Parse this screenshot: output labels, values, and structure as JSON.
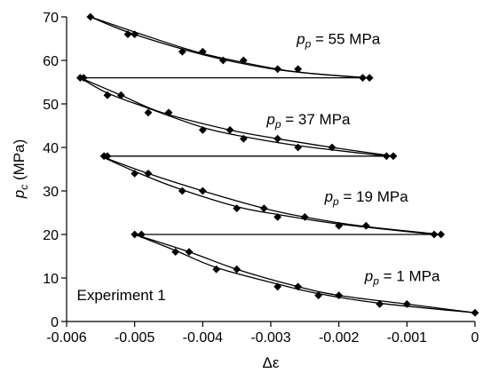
{
  "chart_data": {
    "type": "line",
    "title": "",
    "xlabel": "Δε",
    "ylabel_main": "p",
    "ylabel_sub": "c",
    "ylabel_unit": " (MPa)",
    "xlim": [
      -0.006,
      0
    ],
    "ylim": [
      0,
      70
    ],
    "xticks": [
      -0.006,
      -0.005,
      -0.004,
      -0.003,
      -0.002,
      -0.001,
      0
    ],
    "xtick_labels": [
      "-0.006",
      "-0.005",
      "-0.004",
      "-0.003",
      "-0.002",
      "-0.001",
      "0"
    ],
    "yticks": [
      0,
      10,
      20,
      30,
      40,
      50,
      60,
      70
    ],
    "ytick_labels": [
      "0",
      "10",
      "20",
      "30",
      "40",
      "50",
      "60",
      "70"
    ],
    "grid": false,
    "legend": "none",
    "annotations": [
      {
        "main": "p",
        "sub": "p",
        "rest": " = 55 MPa",
        "x": -0.00262,
        "y": 63.8
      },
      {
        "main": "p",
        "sub": "p",
        "rest": " = 37 MPa",
        "x": -0.00306,
        "y": 45.3
      },
      {
        "main": "p",
        "sub": "p",
        "rest": " = 19 MPa",
        "x": -0.00221,
        "y": 27.6
      },
      {
        "main": "p",
        "sub": "p",
        "rest": " = 1 MPa",
        "x": -0.00162,
        "y": 9.3
      },
      {
        "main": "Experiment 1",
        "sub": "",
        "rest": "",
        "x": -0.00585,
        "y": 4.9
      }
    ],
    "series": [
      {
        "curves": [
          [
            [
              -0.00565,
              70
            ],
            [
              -0.0051,
              66.5
            ],
            [
              -0.0043,
              62.6
            ],
            [
              -0.0037,
              60.2
            ],
            [
              -0.003,
              58.1
            ],
            [
              -0.0024,
              57
            ],
            [
              -0.00165,
              56
            ]
          ],
          [
            [
              -0.00565,
              70
            ],
            [
              -0.0049,
              66
            ],
            [
              -0.0041,
              62
            ],
            [
              -0.0034,
              59.5
            ],
            [
              -0.0027,
              57.5
            ],
            [
              -0.0021,
              56.6
            ],
            [
              -0.00155,
              56
            ]
          ]
        ],
        "markers": [
          [
            -0.00565,
            70
          ],
          [
            -0.0051,
            66
          ],
          [
            -0.005,
            66
          ],
          [
            -0.0043,
            62
          ],
          [
            -0.004,
            62
          ],
          [
            -0.0037,
            60
          ],
          [
            -0.0034,
            60
          ],
          [
            -0.0029,
            58
          ],
          [
            -0.0026,
            58
          ],
          [
            -0.00165,
            56
          ],
          [
            -0.00155,
            56
          ]
        ]
      },
      {
        "hline": [
          [
            -0.0058,
            56
          ],
          [
            -0.0016,
            56
          ]
        ]
      },
      {
        "curves": [
          [
            [
              -0.0058,
              56
            ],
            [
              -0.0054,
              52.5
            ],
            [
              -0.0048,
              49
            ],
            [
              -0.004,
              44.6
            ],
            [
              -0.0034,
              42.5
            ],
            [
              -0.0026,
              40.4
            ],
            [
              -0.0013,
              38
            ]
          ],
          [
            [
              -0.0058,
              56
            ],
            [
              -0.0052,
              52
            ],
            [
              -0.0046,
              48
            ],
            [
              -0.0036,
              44
            ],
            [
              -0.0029,
              42
            ],
            [
              -0.0021,
              40
            ],
            [
              -0.0012,
              38
            ]
          ]
        ],
        "markers": [
          [
            -0.0058,
            56
          ],
          [
            -0.00575,
            56
          ],
          [
            -0.0054,
            52
          ],
          [
            -0.0052,
            52
          ],
          [
            -0.0048,
            48
          ],
          [
            -0.0045,
            48
          ],
          [
            -0.004,
            44
          ],
          [
            -0.0036,
            44
          ],
          [
            -0.0034,
            42
          ],
          [
            -0.0029,
            42
          ],
          [
            -0.0026,
            40
          ],
          [
            -0.0021,
            40
          ],
          [
            -0.0013,
            38
          ],
          [
            -0.0012,
            38
          ]
        ]
      },
      {
        "hline": [
          [
            -0.0055,
            38
          ],
          [
            -0.0012,
            38
          ]
        ]
      },
      {
        "curves": [
          [
            [
              -0.0055,
              38
            ],
            [
              -0.005,
              34.5
            ],
            [
              -0.0044,
              30.8
            ],
            [
              -0.0035,
              26.4
            ],
            [
              -0.0029,
              24.6
            ],
            [
              -0.002,
              22.4
            ],
            [
              -0.0006,
              20
            ]
          ],
          [
            [
              -0.0055,
              38
            ],
            [
              -0.0048,
              34
            ],
            [
              -0.004,
              30
            ],
            [
              -0.0031,
              26
            ],
            [
              -0.0025,
              24
            ],
            [
              -0.0017,
              22
            ],
            [
              -0.0005,
              20
            ]
          ]
        ],
        "markers": [
          [
            -0.00545,
            38
          ],
          [
            -0.0054,
            38
          ],
          [
            -0.005,
            34
          ],
          [
            -0.0048,
            34
          ],
          [
            -0.0043,
            30
          ],
          [
            -0.004,
            30
          ],
          [
            -0.0035,
            26
          ],
          [
            -0.0031,
            26
          ],
          [
            -0.0029,
            24
          ],
          [
            -0.0025,
            24
          ],
          [
            -0.002,
            22
          ],
          [
            -0.0016,
            22
          ],
          [
            -0.0006,
            20
          ],
          [
            -0.0005,
            20
          ]
        ]
      },
      {
        "hline": [
          [
            -0.005,
            20
          ],
          [
            -0.0005,
            20
          ]
        ]
      },
      {
        "curves": [
          [
            [
              -0.005,
              20
            ],
            [
              -0.0044,
              16.3
            ],
            [
              -0.0038,
              12.4
            ],
            [
              -0.0029,
              8.6
            ],
            [
              -0.0023,
              6.4
            ],
            [
              -0.0014,
              4.2
            ],
            [
              0,
              2
            ]
          ],
          [
            [
              -0.005,
              20
            ],
            [
              -0.0042,
              16
            ],
            [
              -0.0035,
              12
            ],
            [
              -0.0026,
              8
            ],
            [
              -0.002,
              6
            ],
            [
              -0.001,
              4
            ],
            [
              0,
              2
            ]
          ]
        ],
        "markers": [
          [
            -0.005,
            20
          ],
          [
            -0.0049,
            20
          ],
          [
            -0.0044,
            16
          ],
          [
            -0.0042,
            16
          ],
          [
            -0.0038,
            12
          ],
          [
            -0.0035,
            12
          ],
          [
            -0.0029,
            8
          ],
          [
            -0.0026,
            8
          ],
          [
            -0.0023,
            6
          ],
          [
            -0.002,
            6
          ],
          [
            -0.0014,
            4
          ],
          [
            -0.001,
            4
          ],
          [
            0,
            2
          ]
        ]
      }
    ]
  }
}
